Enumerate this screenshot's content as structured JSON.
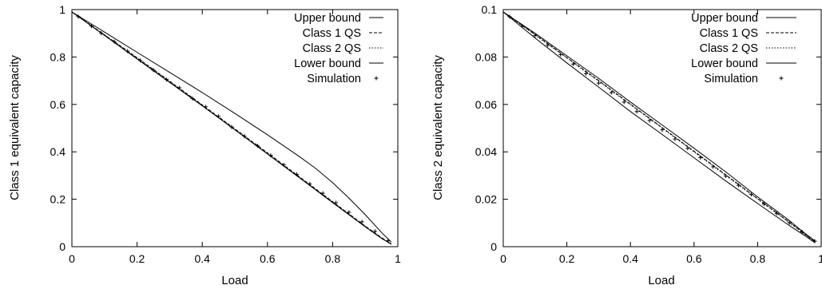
{
  "chart_data": [
    {
      "type": "line",
      "xlabel": "Load",
      "ylabel": "Class 1 equivalent capacity",
      "xlim": [
        0,
        1
      ],
      "ylim": [
        0,
        1
      ],
      "xticks": [
        "0",
        "0.2",
        "0.4",
        "0.6",
        "0.8",
        "1"
      ],
      "yticks": [
        "0",
        "0.2",
        "0.4",
        "0.6",
        "0.8",
        "1"
      ],
      "grid": false,
      "legend_position": "top-right",
      "series": [
        {
          "name": "Upper bound",
          "style": "solid",
          "x": [
            0,
            0.1,
            0.2,
            0.3,
            0.4,
            0.5,
            0.6,
            0.7,
            0.75,
            0.8,
            0.85,
            0.9,
            0.95,
            0.98
          ],
          "y": [
            0.99,
            0.905,
            0.82,
            0.735,
            0.65,
            0.562,
            0.472,
            0.378,
            0.328,
            0.27,
            0.205,
            0.135,
            0.06,
            0.02
          ]
        },
        {
          "name": "Class 1 QS",
          "style": "dashed",
          "x": [
            0,
            0.1,
            0.2,
            0.3,
            0.4,
            0.5,
            0.6,
            0.7,
            0.8,
            0.9,
            0.95,
            0.98
          ],
          "y": [
            0.99,
            0.894,
            0.797,
            0.698,
            0.598,
            0.497,
            0.396,
            0.293,
            0.19,
            0.087,
            0.038,
            0.012
          ]
        },
        {
          "name": "Class 2 QS",
          "style": "dotted",
          "x": [
            0,
            0.1,
            0.2,
            0.3,
            0.4,
            0.5,
            0.6,
            0.7,
            0.8,
            0.9,
            0.95,
            0.98
          ],
          "y": [
            0.99,
            0.893,
            0.795,
            0.696,
            0.596,
            0.495,
            0.393,
            0.291,
            0.188,
            0.086,
            0.037,
            0.012
          ]
        },
        {
          "name": "Lower bound",
          "style": "solid",
          "x": [
            0,
            0.1,
            0.2,
            0.3,
            0.4,
            0.5,
            0.6,
            0.7,
            0.8,
            0.9,
            0.95,
            0.98
          ],
          "y": [
            0.99,
            0.891,
            0.792,
            0.693,
            0.594,
            0.493,
            0.391,
            0.289,
            0.186,
            0.084,
            0.035,
            0.01
          ]
        },
        {
          "name": "Simulation",
          "style": "points",
          "x": [
            0.02,
            0.06,
            0.09,
            0.13,
            0.17,
            0.21,
            0.25,
            0.29,
            0.33,
            0.37,
            0.41,
            0.45,
            0.49,
            0.53,
            0.57,
            0.61,
            0.65,
            0.69,
            0.73,
            0.77,
            0.81,
            0.85,
            0.89,
            0.93,
            0.97
          ],
          "y": [
            0.97,
            0.93,
            0.9,
            0.865,
            0.825,
            0.785,
            0.745,
            0.705,
            0.67,
            0.625,
            0.59,
            0.55,
            0.505,
            0.465,
            0.425,
            0.385,
            0.345,
            0.305,
            0.265,
            0.225,
            0.185,
            0.145,
            0.105,
            0.065,
            0.025
          ]
        }
      ]
    },
    {
      "type": "line",
      "xlabel": "Load",
      "ylabel": "Class 2 equivalent capacity",
      "xlim": [
        0,
        1
      ],
      "ylim": [
        0,
        0.1
      ],
      "xticks": [
        "0",
        "0.2",
        "0.4",
        "0.6",
        "0.8",
        "1"
      ],
      "yticks": [
        "0",
        "0.02",
        "0.04",
        "0.06",
        "0.08",
        "0.1"
      ],
      "grid": false,
      "legend_position": "top-right",
      "series": [
        {
          "name": "Upper bound",
          "style": "solid",
          "x": [
            0,
            0.1,
            0.2,
            0.3,
            0.4,
            0.5,
            0.6,
            0.7,
            0.8,
            0.9,
            0.95,
            0.98
          ],
          "y": [
            0.099,
            0.09,
            0.0805,
            0.071,
            0.061,
            0.0513,
            0.0415,
            0.0315,
            0.021,
            0.011,
            0.0055,
            0.0025
          ]
        },
        {
          "name": "Class 1 QS",
          "style": "dashed",
          "x": [
            0,
            0.1,
            0.2,
            0.3,
            0.4,
            0.5,
            0.6,
            0.7,
            0.8,
            0.9,
            0.95,
            0.98
          ],
          "y": [
            0.099,
            0.0895,
            0.0798,
            0.0701,
            0.0601,
            0.0502,
            0.0403,
            0.0303,
            0.0203,
            0.0103,
            0.0052,
            0.0022
          ]
        },
        {
          "name": "Class 2 QS",
          "style": "dotted",
          "x": [
            0,
            0.1,
            0.2,
            0.3,
            0.4,
            0.5,
            0.6,
            0.7,
            0.8,
            0.9,
            0.95,
            0.98
          ],
          "y": [
            0.099,
            0.0893,
            0.0796,
            0.0698,
            0.0599,
            0.05,
            0.04,
            0.03,
            0.0201,
            0.0101,
            0.0051,
            0.0021
          ]
        },
        {
          "name": "Lower bound",
          "style": "solid",
          "x": [
            0,
            0.1,
            0.2,
            0.3,
            0.4,
            0.5,
            0.6,
            0.7,
            0.8,
            0.9,
            0.95,
            0.98
          ],
          "y": [
            0.099,
            0.088,
            0.0775,
            0.0673,
            0.057,
            0.0473,
            0.0375,
            0.0277,
            0.0182,
            0.0089,
            0.0045,
            0.0017
          ]
        },
        {
          "name": "Simulation",
          "style": "points",
          "x": [
            0.02,
            0.06,
            0.1,
            0.14,
            0.18,
            0.22,
            0.26,
            0.3,
            0.34,
            0.38,
            0.42,
            0.46,
            0.5,
            0.54,
            0.58,
            0.62,
            0.66,
            0.7,
            0.74,
            0.78,
            0.82,
            0.86,
            0.9,
            0.94,
            0.98
          ],
          "y": [
            0.097,
            0.093,
            0.089,
            0.085,
            0.081,
            0.077,
            0.073,
            0.069,
            0.065,
            0.061,
            0.057,
            0.0532,
            0.0493,
            0.0454,
            0.0415,
            0.0376,
            0.0337,
            0.0298,
            0.0259,
            0.022,
            0.018,
            0.014,
            0.0101,
            0.0062,
            0.0023
          ]
        }
      ]
    }
  ]
}
